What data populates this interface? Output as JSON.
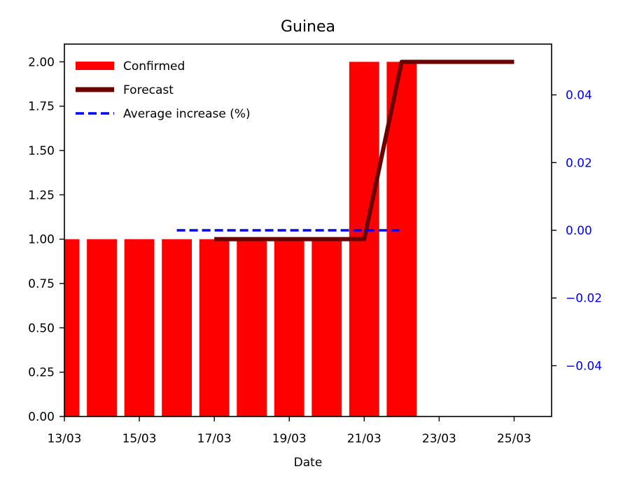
{
  "chart_data": {
    "type": "bar",
    "title": "Guinea",
    "xlabel": "Date",
    "ylabel": "",
    "ylim": [
      0,
      2.1
    ],
    "y2lim": [
      -0.055,
      0.055
    ],
    "xlim": [
      0,
      13
    ],
    "x_tick_positions": [
      0,
      2,
      4,
      6,
      8,
      10,
      12
    ],
    "x_tick_labels": [
      "13/03",
      "15/03",
      "17/03",
      "19/03",
      "21/03",
      "23/03",
      "25/03"
    ],
    "y_tick_values": [
      0.0,
      0.25,
      0.5,
      0.75,
      1.0,
      1.25,
      1.5,
      1.75,
      2.0
    ],
    "y_tick_labels": [
      "0.00",
      "0.25",
      "0.50",
      "0.75",
      "1.00",
      "1.25",
      "1.50",
      "1.75",
      "2.00"
    ],
    "y2_tick_values": [
      -0.04,
      -0.02,
      0.0,
      0.02,
      0.04
    ],
    "y2_tick_labels": [
      "−0.04",
      "−0.02",
      "0.00",
      "0.02",
      "0.04"
    ],
    "legend_position": "top-left",
    "grid": false,
    "series": [
      {
        "name": "Confirmed",
        "type": "bar",
        "axis": "left",
        "color": "#ff0000",
        "x": [
          0,
          1,
          2,
          3,
          4,
          5,
          6,
          7,
          8,
          9
        ],
        "values": [
          1,
          1,
          1,
          1,
          1,
          1,
          1,
          1,
          2,
          2
        ]
      },
      {
        "name": "Forecast",
        "type": "line",
        "axis": "left",
        "color": "#6b0000",
        "x": [
          4,
          5,
          6,
          7,
          8,
          9,
          10,
          11,
          12
        ],
        "values": [
          1,
          1,
          1,
          1,
          1,
          2,
          2,
          2,
          2
        ]
      },
      {
        "name": "Average increase (%)",
        "type": "line",
        "style": "dashed",
        "axis": "right",
        "color": "#0000ff",
        "x": [
          3,
          9
        ],
        "values": [
          0.0,
          0.0
        ]
      }
    ],
    "right_axis_color": "#0000ff"
  }
}
